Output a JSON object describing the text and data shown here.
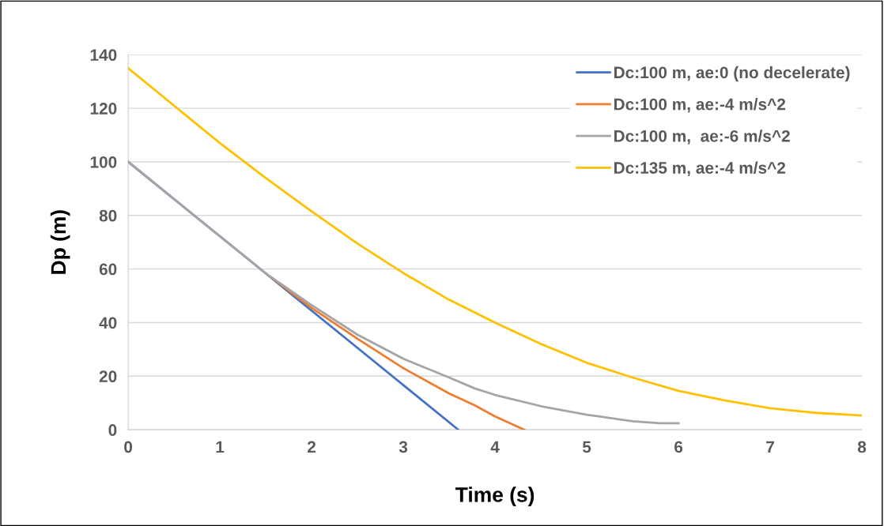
{
  "chart_data": {
    "type": "line",
    "xlabel": "Time (s)",
    "ylabel": "Dp (m)",
    "xlim": [
      0,
      8
    ],
    "xticks": [
      0,
      1,
      2,
      3,
      4,
      5,
      6,
      7,
      8
    ],
    "ylim": [
      0,
      140
    ],
    "yticks": [
      0,
      20,
      40,
      60,
      80,
      100,
      120,
      140
    ],
    "grid": "y",
    "legend": "top right",
    "marker": "none",
    "line_style": "solid",
    "series": [
      {
        "name": "Dc:100 m, ae:0 (no decelerate)",
        "color": "#4472c4",
        "x": [
          0,
          3.6
        ],
        "values": [
          100,
          0
        ]
      },
      {
        "name": "Dc:100 m, ae:-4 m/s^2",
        "color": "#ed7d31",
        "x": [
          1.5,
          2,
          2.5,
          3,
          3.5,
          3.78,
          4,
          4.32
        ],
        "values": [
          58.4,
          45.5,
          34,
          23,
          13.5,
          9.1,
          5,
          0
        ]
      },
      {
        "name": "Dc:100 m,  ae:-6 m/s^2",
        "color": "#a5a5a5",
        "x": [
          0,
          0.5,
          1,
          1.5,
          2,
          2.5,
          3,
          3.5,
          3.78,
          4,
          4.5,
          5,
          5.5,
          5.8,
          6
        ],
        "values": [
          100,
          86.1,
          72.2,
          58.4,
          46.5,
          35.5,
          26.5,
          19.5,
          15.4,
          13,
          8.8,
          5.6,
          3.2,
          2.4,
          2.4
        ]
      },
      {
        "name": "Dc:135 m, ae:-4 m/s^2",
        "color": "#ffc000",
        "x": [
          0,
          0.5,
          1,
          1.5,
          2,
          2.5,
          3,
          3.5,
          4,
          4.5,
          5,
          5.5,
          6,
          6.5,
          7,
          7.5,
          8
        ],
        "values": [
          135,
          121,
          107,
          94,
          81.5,
          69.5,
          58.5,
          48.5,
          40,
          32,
          25,
          19.5,
          14.5,
          11,
          8,
          6.3,
          5.3
        ]
      }
    ]
  }
}
